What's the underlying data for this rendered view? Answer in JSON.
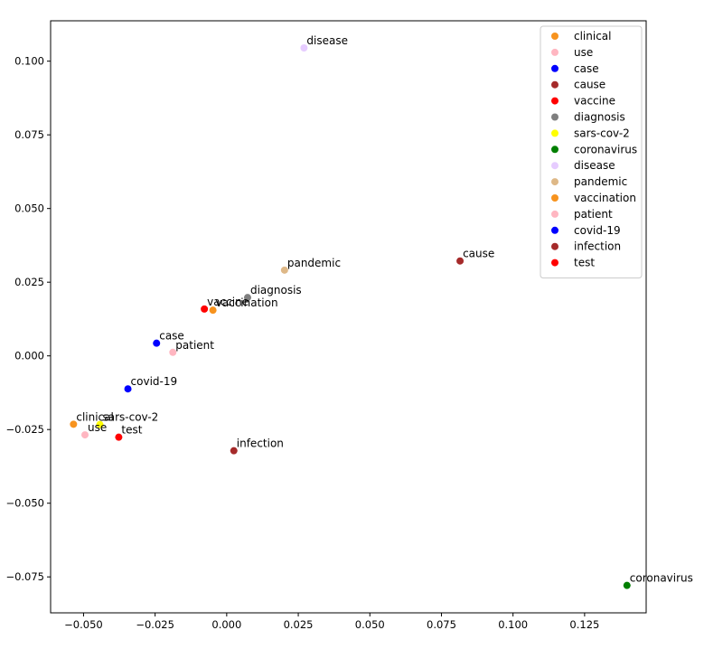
{
  "chart_data": {
    "type": "scatter",
    "title": "",
    "xlabel": "",
    "ylabel": "",
    "xlim": [
      -0.0615,
      0.1465
    ],
    "ylim": [
      -0.0872,
      0.1137
    ],
    "grid": false,
    "legend_position": "top-right",
    "x_ticks": [
      {
        "value": -0.05,
        "label": "−0.050"
      },
      {
        "value": -0.025,
        "label": "−0.025"
      },
      {
        "value": 0.0,
        "label": "0.000"
      },
      {
        "value": 0.025,
        "label": "0.025"
      },
      {
        "value": 0.05,
        "label": "0.050"
      },
      {
        "value": 0.075,
        "label": "0.075"
      },
      {
        "value": 0.1,
        "label": "0.100"
      },
      {
        "value": 0.125,
        "label": "0.125"
      }
    ],
    "y_ticks": [
      {
        "value": -0.075,
        "label": "−0.075"
      },
      {
        "value": -0.05,
        "label": "−0.050"
      },
      {
        "value": -0.025,
        "label": "−0.025"
      },
      {
        "value": 0.0,
        "label": "0.000"
      },
      {
        "value": 0.025,
        "label": "0.025"
      },
      {
        "value": 0.05,
        "label": "0.050"
      },
      {
        "value": 0.075,
        "label": "0.075"
      },
      {
        "value": 0.1,
        "label": "0.100"
      }
    ],
    "series": [
      {
        "name": "clinical",
        "color": "#F7931E",
        "x": -0.0535,
        "y": -0.0232
      },
      {
        "name": "use",
        "color": "#FFB6C1",
        "x": -0.0495,
        "y": -0.0268
      },
      {
        "name": "case",
        "color": "#0000FF",
        "x": -0.0245,
        "y": 0.0043
      },
      {
        "name": "cause",
        "color": "#A52A2A",
        "x": 0.0815,
        "y": 0.0322
      },
      {
        "name": "vaccine",
        "color": "#FF0000",
        "x": -0.0078,
        "y": 0.0159
      },
      {
        "name": "diagnosis",
        "color": "#7F7F7F",
        "x": 0.0073,
        "y": 0.0198
      },
      {
        "name": "sars-cov-2",
        "color": "#FFFF00",
        "x": -0.0443,
        "y": -0.0233
      },
      {
        "name": "coronavirus",
        "color": "#007F00",
        "x": 0.1398,
        "y": -0.0779
      },
      {
        "name": "disease",
        "color": "#E6CCFF",
        "x": 0.027,
        "y": 0.1045
      },
      {
        "name": "pandemic",
        "color": "#DEB887",
        "x": 0.0202,
        "y": 0.0291
      },
      {
        "name": "vaccination",
        "color": "#F7931E",
        "x": -0.0048,
        "y": 0.0155
      },
      {
        "name": "patient",
        "color": "#FFB6C1",
        "x": -0.0188,
        "y": 0.0012
      },
      {
        "name": "covid-19",
        "color": "#0000FF",
        "x": -0.0345,
        "y": -0.0112
      },
      {
        "name": "infection",
        "color": "#A52A2A",
        "x": 0.0025,
        "y": -0.0322
      },
      {
        "name": "test",
        "color": "#FF0000",
        "x": -0.0377,
        "y": -0.0276
      }
    ]
  }
}
